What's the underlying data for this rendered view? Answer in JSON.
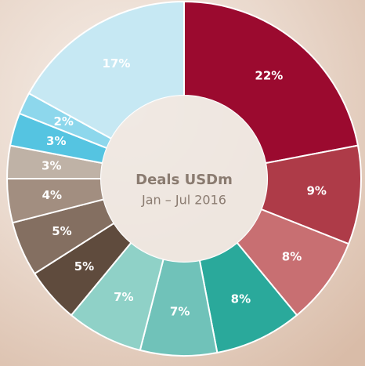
{
  "chart_data": {
    "type": "donut",
    "title": "Deals USDm",
    "subtitle": "Jan – Jul 2016",
    "values": [
      22,
      9,
      8,
      8,
      7,
      7,
      5,
      5,
      4,
      3,
      3,
      2,
      17
    ],
    "value_labels": [
      "22%",
      "9%",
      "8%",
      "8%",
      "7%",
      "7%",
      "5%",
      "5%",
      "4%",
      "3%",
      "3%",
      "2%",
      "17%"
    ],
    "colors": [
      "#9b0a2f",
      "#ae3b48",
      "#c86f72",
      "#2aa99b",
      "#70c2b9",
      "#8fd1c7",
      "#5f4b3d",
      "#846f61",
      "#a28e80",
      "#bfb2a6",
      "#55c4e1",
      "#8dd7ec",
      "#c6e8f3"
    ]
  }
}
